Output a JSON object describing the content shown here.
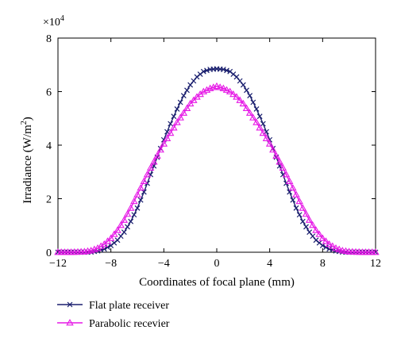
{
  "chart_data": {
    "type": "line",
    "xlabel": "Coordinates of focal plane (mm)",
    "ylabel": "Irradiance (W/m",
    "ylabel_superscript": "2",
    "ylabel_close": ")",
    "y_multiplier": "×10",
    "y_multiplier_exponent": "4",
    "xlim": [
      -12,
      12
    ],
    "ylim": [
      0,
      8
    ],
    "x_ticks": [
      -12,
      -8,
      -4,
      0,
      4,
      8,
      12
    ],
    "y_ticks": [
      0,
      2,
      4,
      6,
      8
    ],
    "x_tick_labels": [
      "−12",
      "−8",
      "−4",
      "0",
      "4",
      "8",
      "12"
    ],
    "y_tick_labels": [
      "0",
      "2",
      "4",
      "6",
      "8"
    ],
    "grid": false,
    "legend_position": "bottom-left, below plot",
    "series": [
      {
        "name": "Flat plate receiver",
        "color": "#1a1f6e",
        "marker": "x",
        "x": [
          -12,
          -11,
          -10,
          -9.5,
          -9,
          -8.5,
          -8,
          -7.5,
          -7,
          -6.5,
          -6,
          -5.5,
          -5,
          -4.5,
          -4,
          -3.5,
          -3,
          -2.5,
          -2,
          -1.5,
          -1,
          -0.5,
          0,
          0.5,
          1,
          1.5,
          2,
          2.5,
          3,
          3.5,
          4,
          4.5,
          5,
          5.5,
          6,
          6.5,
          7,
          7.5,
          8,
          8.5,
          9,
          9.5,
          10,
          11,
          12
        ],
        "values": [
          0,
          0,
          0,
          0.01,
          0.05,
          0.12,
          0.25,
          0.45,
          0.75,
          1.15,
          1.65,
          2.25,
          2.9,
          3.55,
          4.2,
          4.8,
          5.35,
          5.85,
          6.25,
          6.55,
          6.75,
          6.83,
          6.85,
          6.83,
          6.75,
          6.55,
          6.25,
          5.85,
          5.35,
          4.8,
          4.2,
          3.55,
          2.9,
          2.25,
          1.65,
          1.15,
          0.75,
          0.45,
          0.25,
          0.12,
          0.05,
          0.01,
          0,
          0,
          0
        ]
      },
      {
        "name": "Parabolic recevier",
        "color": "#e619e6",
        "marker": "triangle",
        "x": [
          -12,
          -11,
          -10,
          -9.5,
          -9,
          -8.5,
          -8,
          -7.5,
          -7,
          -6.5,
          -6,
          -5.5,
          -5,
          -4.5,
          -4,
          -3.5,
          -3,
          -2.5,
          -2,
          -1.5,
          -1,
          -0.5,
          0,
          0.5,
          1,
          1.5,
          2,
          2.5,
          3,
          3.5,
          4,
          4.5,
          5,
          5.5,
          6,
          6.5,
          7,
          7.5,
          8,
          8.5,
          9,
          9.5,
          10,
          11,
          12
        ],
        "values": [
          0,
          0,
          0.02,
          0.06,
          0.15,
          0.3,
          0.52,
          0.82,
          1.2,
          1.65,
          2.15,
          2.65,
          3.15,
          3.6,
          4.05,
          4.45,
          4.85,
          5.2,
          5.55,
          5.8,
          6.0,
          6.12,
          6.2,
          6.12,
          6.0,
          5.8,
          5.55,
          5.2,
          4.85,
          4.45,
          4.05,
          3.6,
          3.15,
          2.65,
          2.15,
          1.65,
          1.2,
          0.82,
          0.52,
          0.3,
          0.15,
          0.06,
          0.02,
          0,
          0
        ]
      }
    ]
  }
}
